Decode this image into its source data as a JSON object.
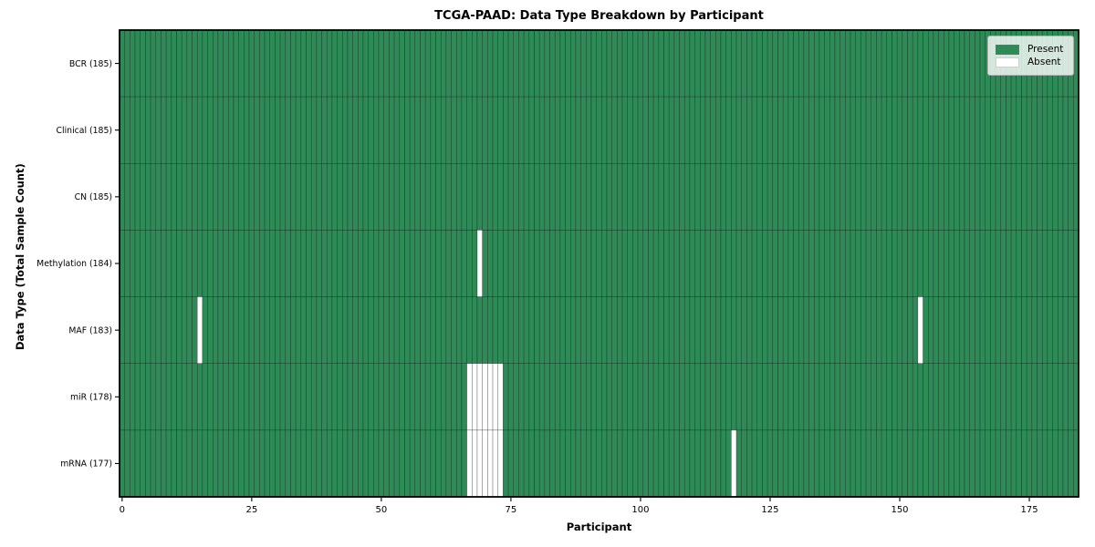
{
  "chart_data": {
    "type": "heatmap",
    "title": "TCGA-PAAD: Data Type Breakdown by Participant",
    "xlabel": "Participant",
    "ylabel": "Data Type (Total Sample Count)",
    "x_ticks": [
      0,
      25,
      50,
      75,
      100,
      125,
      150,
      175
    ],
    "x_range": [
      -0.5,
      184.5
    ],
    "n_participants": 185,
    "rows": [
      {
        "name": "BCR",
        "label": "BCR (185)",
        "total": 185,
        "absent_participants": []
      },
      {
        "name": "Clinical",
        "label": "Clinical (185)",
        "total": 185,
        "absent_participants": []
      },
      {
        "name": "CN",
        "label": "CN (185)",
        "total": 185,
        "absent_participants": []
      },
      {
        "name": "Methylation",
        "label": "Methylation (184)",
        "total": 184,
        "absent_participants": [
          69
        ]
      },
      {
        "name": "MAF",
        "label": "MAF (183)",
        "total": 183,
        "absent_participants": [
          15,
          154
        ]
      },
      {
        "name": "miR",
        "label": "miR (178)",
        "total": 178,
        "absent_participants": [
          67,
          68,
          69,
          70,
          71,
          72,
          73
        ]
      },
      {
        "name": "mRNA",
        "label": "mRNA (177)",
        "total": 177,
        "absent_participants": [
          67,
          68,
          69,
          70,
          71,
          72,
          73,
          118
        ]
      }
    ],
    "legend": {
      "position": "upper right",
      "entries": [
        {
          "label": "Present",
          "color": "#2e8b57"
        },
        {
          "label": "Absent",
          "color": "#ffffff"
        }
      ]
    },
    "colors": {
      "present": "#2e8b57",
      "absent": "#ffffff",
      "bar_edge": "#000000",
      "bar_edge_opacity": 0.5,
      "axis": "#000000",
      "tick_text": "#000000",
      "background": "#ffffff"
    },
    "grid": false
  }
}
